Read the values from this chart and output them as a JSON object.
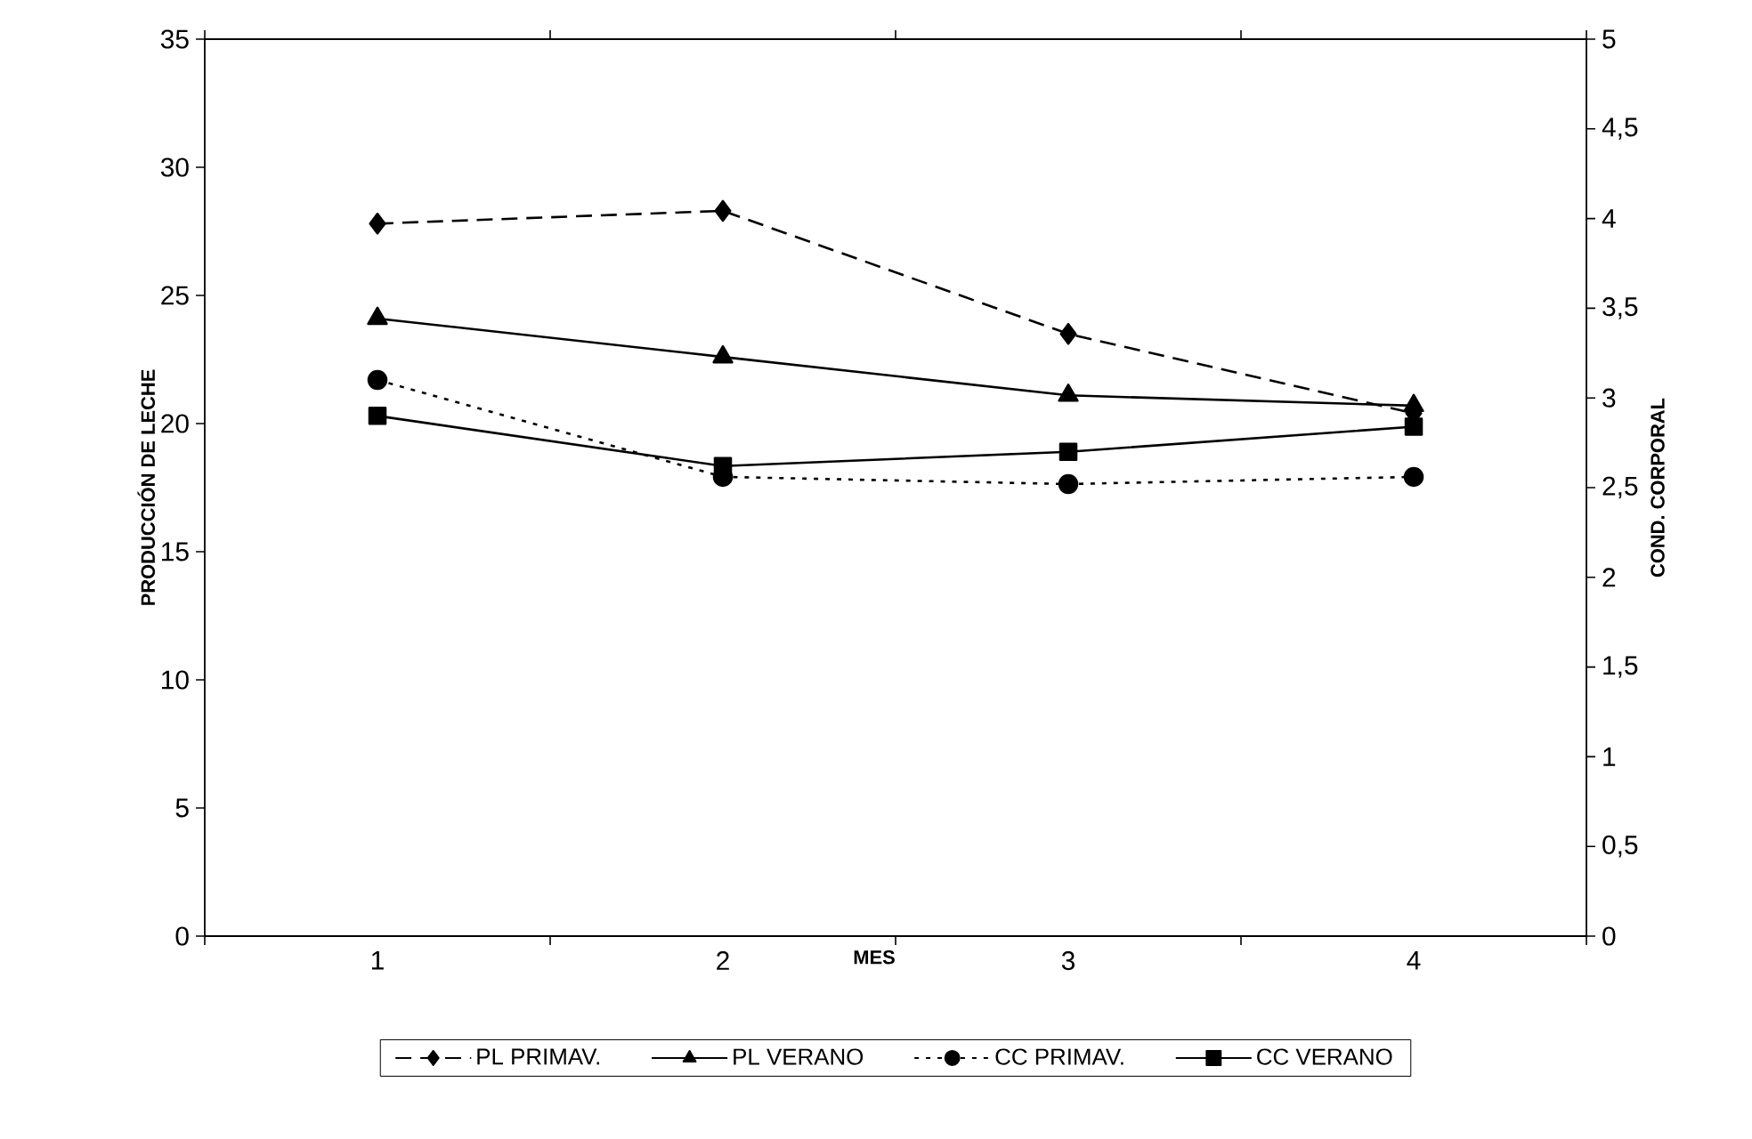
{
  "chart_data": {
    "type": "line",
    "xlabel": "MES",
    "ylabel": "PRODUCCIÓN DE LECHE",
    "y2label": "COND. CORPORAL",
    "categories": [
      "1",
      "2",
      "3",
      "4"
    ],
    "series": [
      {
        "name": "PL PRIMAV.",
        "color": "#000000",
        "marker": "diamond",
        "line_style": "dashed",
        "values": [
          27.8,
          28.3,
          23.5,
          20.4
        ]
      },
      {
        "name": "PL VERANO",
        "color": "#000000",
        "marker": "triangle",
        "line_style": "solid",
        "values": [
          24.1,
          22.6,
          21.1,
          20.7
        ]
      },
      {
        "name": "CC PRIMAV.",
        "color": "#000000",
        "marker": "circle",
        "line_style": "dotted",
        "axis": "y2",
        "values": [
          3.1,
          2.56,
          2.52,
          2.56
        ]
      },
      {
        "name": "CC VERANO",
        "color": "#000000",
        "marker": "square",
        "line_style": "solid",
        "axis": "y2",
        "values": [
          2.9,
          2.62,
          2.7,
          2.84
        ]
      }
    ],
    "ylim": [
      0,
      35
    ],
    "yticks": [
      0,
      5,
      10,
      15,
      20,
      25,
      30,
      35
    ],
    "y2lim": [
      0,
      5
    ],
    "y2ticks": [
      0,
      {
        "value": 0.5,
        "label": "0,5"
      },
      1,
      {
        "value": 1.5,
        "label": "1,5"
      },
      2,
      {
        "value": 2.5,
        "label": "2,5"
      },
      3,
      {
        "value": 3.5,
        "label": "3,5"
      },
      4,
      {
        "value": 4.5,
        "label": "4,5"
      },
      5
    ],
    "grid": false,
    "legend": "bottom"
  }
}
